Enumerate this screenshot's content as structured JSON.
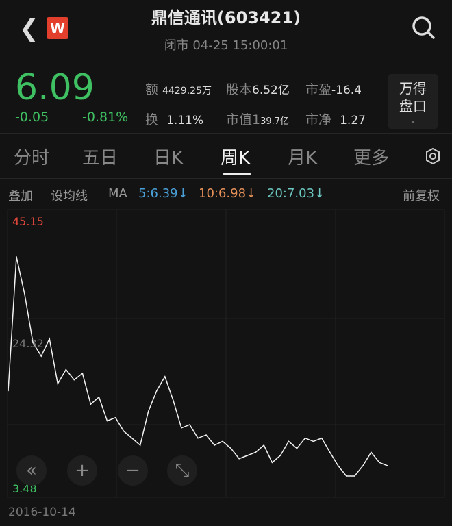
{
  "header": {
    "back_icon": "chevron-left-icon",
    "logo_text": "W",
    "title": "鼎信通讯(603421)",
    "status": "闭市 04-25 15:00:01",
    "search_icon": "search-icon"
  },
  "quote": {
    "price": "6.09",
    "change": "-0.05",
    "change_pct": "-0.81%",
    "stats": [
      {
        "label": "额",
        "value": "4429.25万"
      },
      {
        "label": "股本",
        "value": "6.52亿"
      },
      {
        "label": "市盈",
        "value": "-16.4"
      },
      {
        "label": "换",
        "value": "1.11%"
      },
      {
        "label": "市值1",
        "value": "39.7亿"
      },
      {
        "label": "市净",
        "value": "1.27"
      }
    ],
    "wind_button": [
      "万得",
      "盘口"
    ],
    "colors": {
      "down": "#3fc062",
      "up": "#e5483c"
    }
  },
  "tabs": [
    "分时",
    "五日",
    "日K",
    "周K",
    "月K",
    "更多"
  ],
  "active_tab": "周K",
  "settings_icon": "hexagon-gear-icon",
  "ma_bar": {
    "overlay": "叠加",
    "set_ma": "设均线",
    "ma_label": "MA",
    "ma5": "5:6.39↓",
    "ma10": "10:6.98↓",
    "ma20": "20:7.03↓",
    "adjust": "前复权",
    "colors": {
      "ma5": "#4a9fd6",
      "ma10": "#e8925a",
      "ma20": "#6cc7c0"
    }
  },
  "chart_data": {
    "type": "line",
    "max_label": "45.15",
    "mid_label": "24.32",
    "min_label": "3.48",
    "ylim": [
      3.48,
      45.15
    ],
    "start_date": "2016-10-14",
    "values": [
      18.6,
      39.5,
      33.6,
      26.1,
      24.0,
      26.7,
      19.7,
      21.9,
      20.3,
      21.3,
      16.5,
      17.6,
      13.9,
      14.4,
      12.3,
      11.2,
      10.1,
      15.4,
      18.6,
      20.8,
      17.1,
      12.8,
      13.3,
      11.2,
      11.7,
      10.1,
      10.7,
      9.6,
      8.0,
      8.5,
      9.0,
      10.1,
      7.4,
      8.5,
      10.7,
      9.6,
      11.2,
      10.7,
      11.2,
      9.0,
      6.9,
      5.3,
      5.3,
      6.9,
      9.0,
      7.4,
      6.9
    ]
  },
  "controls": [
    {
      "icon": "double-chevron-left-icon",
      "glyph": "«"
    },
    {
      "icon": "zoom-in-icon",
      "glyph": "+"
    },
    {
      "icon": "zoom-out-icon",
      "glyph": "−"
    },
    {
      "icon": "fullscreen-icon",
      "glyph": "⤡"
    }
  ]
}
